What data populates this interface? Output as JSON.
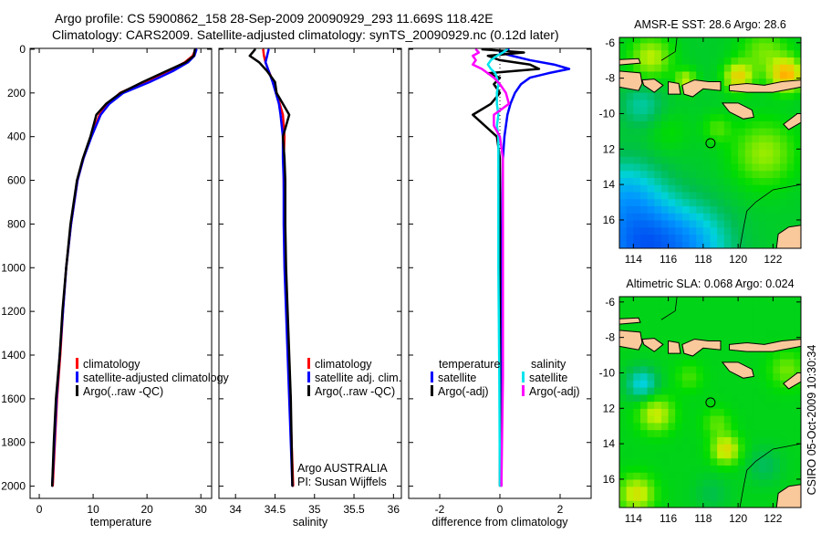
{
  "title": {
    "line1": "Argo profile: CS 5900862_158 28-Sep-2009 20090929_293 11.669S 118.42E",
    "line2": "Climatology: CARS2009. Satellite-adjusted climatology: synTS_20090929.nc (0.12d later)"
  },
  "credit": {
    "provider": "Argo AUSTRALIA",
    "pi": "PI: Susan Wijffels"
  },
  "timestamp": "CSIRO 05-Oct-2009 10:30:34",
  "colors": {
    "climatology": "#ff0000",
    "satellite": "#0000ff",
    "argo": "#000000",
    "sal_satellite": "#00e5ee",
    "sal_argo": "#ff00ff",
    "land": "#f9c99b"
  },
  "chart_data": [
    {
      "id": "temperature",
      "type": "line",
      "xlabel": "temperature",
      "ylabel": "",
      "xlim": [
        -1.7,
        32
      ],
      "ylim": [
        2056,
        -4
      ],
      "xticks": [
        0,
        10,
        20,
        30
      ],
      "xtick_labels": [
        "0",
        "10",
        "20",
        "30"
      ],
      "yticks": [
        0,
        200,
        400,
        600,
        800,
        1000,
        1200,
        1400,
        1600,
        1800,
        2000
      ],
      "ytick_labels": [
        "0",
        "200",
        "400",
        "600",
        "800",
        "1000",
        "1200",
        "1400",
        "1600",
        "1800",
        "2000"
      ],
      "depth": [
        0,
        30,
        60,
        100,
        150,
        200,
        250,
        300,
        400,
        500,
        600,
        800,
        1000,
        1200,
        1400,
        1600,
        1800,
        2000
      ],
      "series": [
        {
          "name": "climatology",
          "color": "#ff0000",
          "values": [
            29.0,
            28.5,
            27.0,
            24.0,
            19.5,
            15.0,
            12.8,
            11.2,
            9.6,
            8.2,
            7.1,
            5.9,
            5.0,
            4.4,
            3.9,
            3.3,
            2.9,
            2.5
          ]
        },
        {
          "name": "satellite-adjusted climatology",
          "color": "#0000ff",
          "values": [
            29.2,
            28.8,
            27.6,
            24.8,
            20.5,
            15.6,
            13.0,
            11.4,
            9.7,
            8.2,
            7.1,
            5.9,
            5.0,
            4.4,
            3.8,
            3.2,
            2.8,
            2.4
          ]
        },
        {
          "name": "Argo(..raw -QC)",
          "color": "#000000",
          "values": [
            28.9,
            28.7,
            27.2,
            23.6,
            19.2,
            15.1,
            12.4,
            10.6,
            9.5,
            8.1,
            7.0,
            5.8,
            5.0,
            4.3,
            3.8,
            3.1,
            2.7,
            2.4
          ]
        }
      ],
      "legend": {
        "placement": "center-right",
        "entries": [
          "climatology",
          "satellite-adjusted climatology",
          "Argo(..raw -QC)"
        ]
      }
    },
    {
      "id": "salinity",
      "type": "line",
      "xlabel": "salinity",
      "xlim": [
        33.79,
        36.1
      ],
      "ylim": [
        2056,
        -4
      ],
      "xticks": [
        34,
        34.5,
        35,
        35.5,
        36
      ],
      "xtick_labels": [
        "34",
        "34.5",
        "35",
        "35.5",
        "36"
      ],
      "yticks": [
        0,
        200,
        400,
        600,
        800,
        1000,
        1200,
        1400,
        1600,
        1800,
        2000
      ],
      "depth": [
        0,
        30,
        60,
        100,
        150,
        200,
        250,
        300,
        400,
        500,
        600,
        800,
        1000,
        1200,
        1400,
        1600,
        1800,
        2000
      ],
      "series": [
        {
          "name": "climatology",
          "color": "#ff0000",
          "values": [
            34.35,
            34.36,
            34.38,
            34.42,
            34.48,
            34.52,
            34.56,
            34.6,
            34.62,
            34.61,
            34.61,
            34.62,
            34.63,
            34.65,
            34.67,
            34.69,
            34.71,
            34.73
          ]
        },
        {
          "name": "satellite adj. clim.",
          "color": "#0000ff",
          "values": [
            34.42,
            34.4,
            34.38,
            34.42,
            34.47,
            34.51,
            34.55,
            34.57,
            34.6,
            34.6,
            34.61,
            34.61,
            34.62,
            34.64,
            34.66,
            34.68,
            34.7,
            34.72
          ]
        },
        {
          "name": "Argo(..raw -QC)",
          "color": "#000000",
          "values": [
            34.25,
            34.18,
            34.3,
            34.4,
            34.5,
            34.52,
            34.6,
            34.68,
            34.6,
            34.62,
            34.63,
            34.63,
            34.64,
            34.66,
            34.68,
            34.7,
            34.71,
            34.72
          ]
        }
      ],
      "legend": {
        "placement": "center-right",
        "entries": [
          "climatology",
          "satellite adj. clim.",
          "Argo(..raw -QC)"
        ]
      }
    },
    {
      "id": "difference",
      "type": "line",
      "xlabel": "difference from climatology",
      "xlim": [
        -3.03,
        3.03
      ],
      "ylim": [
        2056,
        -4
      ],
      "xticks": [
        -2,
        0,
        2
      ],
      "xtick_labels": [
        "-2",
        "0",
        "2"
      ],
      "yticks": [
        0,
        200,
        400,
        600,
        800,
        1000,
        1200,
        1400,
        1600,
        1800,
        2000
      ],
      "depth": [
        0,
        15,
        30,
        50,
        70,
        90,
        110,
        130,
        160,
        200,
        250,
        300,
        350,
        400,
        500,
        700,
        1000,
        1500,
        2000
      ],
      "series": [
        {
          "name": "temperature satellite",
          "color": "#0000ff",
          "values": [
            0.3,
            0.0,
            0.4,
            1.0,
            1.8,
            2.3,
            1.6,
            1.0,
            0.7,
            0.5,
            0.35,
            0.25,
            0.2,
            0.15,
            0.1,
            0.08,
            0.05,
            0.05,
            0.05
          ]
        },
        {
          "name": "temperature Argo(-adj)",
          "color": "#000000",
          "values": [
            -0.6,
            0.8,
            -0.4,
            0.0,
            1.0,
            1.3,
            -0.4,
            0.0,
            -0.2,
            0.0,
            -0.3,
            -0.9,
            -0.5,
            -0.1,
            0.0,
            0.0,
            0.0,
            0.0,
            0.0
          ]
        },
        {
          "name": "salinity satellite",
          "color": "#00e5ee",
          "values": [
            0.25,
            0.1,
            -0.1,
            -0.3,
            -0.4,
            -0.3,
            -0.15,
            -0.1,
            -0.05,
            -0.1,
            -0.1,
            -0.05,
            -0.1,
            -0.05,
            -0.05,
            -0.05,
            -0.05,
            -0.02,
            0.0
          ]
        },
        {
          "name": "salinity Argo(-adj)",
          "color": "#ff00ff",
          "values": [
            -0.8,
            -0.7,
            -0.9,
            -0.8,
            -0.9,
            -0.6,
            -0.4,
            -0.2,
            0.0,
            0.2,
            0.3,
            -0.2,
            -0.2,
            0.0,
            0.1,
            0.1,
            0.1,
            0.1,
            0.05
          ]
        }
      ],
      "legend": {
        "placement": "center",
        "temperature_heading": "temperature",
        "salinity_heading": "salinity",
        "entries": [
          "satellite",
          "Argo(-adj)",
          "satellite",
          "Argo(-adj)"
        ]
      }
    },
    {
      "id": "sst-map",
      "type": "heatmap",
      "title": "AMSR-E SST: 28.6 Argo: 28.6",
      "xlim": [
        113.2,
        123.6
      ],
      "ylim": [
        -17.6,
        -5.7
      ],
      "xticks": [
        114,
        116,
        118,
        120,
        122
      ],
      "xtick_labels": [
        "114",
        "116",
        "118",
        "120",
        "122"
      ],
      "yticks": [
        -6,
        -8,
        -10,
        -12,
        -14,
        -16
      ],
      "ytick_labels": [
        "-6",
        "-8",
        "-10",
        "12",
        "14",
        "16"
      ],
      "profile_location": {
        "lon": 118.42,
        "lat": -11.669
      },
      "field": {
        "base": 0.5,
        "blobs": [
          {
            "lon": 114.5,
            "lat": -17.5,
            "amp": -0.42,
            "r": 2.6
          },
          {
            "lon": 117.5,
            "lat": -17.5,
            "amp": -0.2,
            "r": 2.2
          },
          {
            "lon": 113.5,
            "lat": -14.5,
            "amp": -0.18,
            "r": 2.0
          },
          {
            "lon": 114.5,
            "lat": -9.5,
            "amp": -0.12,
            "r": 1.2
          },
          {
            "lon": 121.5,
            "lat": -12.2,
            "amp": 0.17,
            "r": 1.8
          },
          {
            "lon": 118.8,
            "lat": -10.8,
            "amp": 0.1,
            "r": 0.8
          },
          {
            "lon": 116,
            "lat": -11,
            "amp": 0.05,
            "r": 1.2
          },
          {
            "lon": 115,
            "lat": -6.8,
            "amp": 0.2,
            "r": 1.2
          },
          {
            "lon": 121.5,
            "lat": -6.5,
            "amp": 0.14,
            "r": 1.4
          },
          {
            "lon": 122.8,
            "lat": -7.8,
            "amp": 0.35,
            "r": 0.9
          },
          {
            "lon": 120,
            "lat": -7.9,
            "amp": 0.28,
            "r": 0.8
          },
          {
            "lon": 117,
            "lat": -8.1,
            "amp": 0.2,
            "r": 0.6
          }
        ]
      }
    },
    {
      "id": "sla-map",
      "type": "heatmap",
      "title": "Altimetric SLA: 0.068 Argo: 0.024",
      "xlim": [
        113.2,
        123.6
      ],
      "ylim": [
        -17.6,
        -5.7
      ],
      "xticks": [
        114,
        116,
        118,
        120,
        122
      ],
      "xtick_labels": [
        "114",
        "116",
        "118",
        "120",
        "122"
      ],
      "yticks": [
        -6,
        -8,
        -10,
        -12,
        -14,
        -16
      ],
      "ytick_labels": [
        "-6",
        "-8",
        "-10",
        "12",
        "14",
        "16"
      ],
      "profile_location": {
        "lon": 118.42,
        "lat": -11.669
      },
      "field": {
        "base": 0.52,
        "blobs": [
          {
            "lon": 114.5,
            "lat": -10.6,
            "amp": -0.2,
            "r": 0.9
          },
          {
            "lon": 115.3,
            "lat": -12.3,
            "amp": 0.2,
            "r": 1.0
          },
          {
            "lon": 119.3,
            "lat": -14.3,
            "amp": 0.24,
            "r": 0.8
          },
          {
            "lon": 118.8,
            "lat": -12.8,
            "amp": 0.1,
            "r": 0.8
          },
          {
            "lon": 114.2,
            "lat": -16.8,
            "amp": 0.22,
            "r": 1.0
          },
          {
            "lon": 117.2,
            "lat": -10.2,
            "amp": 0.08,
            "r": 0.8
          },
          {
            "lon": 122.8,
            "lat": -9.8,
            "amp": 0.12,
            "r": 1.0
          },
          {
            "lon": 121.5,
            "lat": -15.2,
            "amp": -0.08,
            "r": 1.0
          },
          {
            "lon": 118.5,
            "lat": -16.8,
            "amp": -0.06,
            "r": 1.0
          }
        ]
      }
    }
  ],
  "land": [
    {
      "name": "Madura",
      "points": [
        [
          113.2,
          -6.95
        ],
        [
          114.3,
          -6.9
        ],
        [
          114.4,
          -7.15
        ],
        [
          113.2,
          -7.25
        ]
      ]
    },
    {
      "name": "East Java",
      "points": [
        [
          113.2,
          -7.6
        ],
        [
          114.4,
          -7.7
        ],
        [
          114.5,
          -8.3
        ],
        [
          114.3,
          -8.7
        ],
        [
          113.2,
          -8.5
        ]
      ]
    },
    {
      "name": "Bali",
      "points": [
        [
          114.5,
          -8.1
        ],
        [
          115.2,
          -8.05
        ],
        [
          115.7,
          -8.4
        ],
        [
          115.2,
          -8.8
        ],
        [
          114.6,
          -8.4
        ]
      ]
    },
    {
      "name": "Lombok",
      "points": [
        [
          116.0,
          -8.2
        ],
        [
          116.6,
          -8.3
        ],
        [
          116.7,
          -8.9
        ],
        [
          116.0,
          -8.9
        ]
      ]
    },
    {
      "name": "Sumbawa",
      "points": [
        [
          116.8,
          -8.4
        ],
        [
          117.5,
          -8.1
        ],
        [
          118.3,
          -8.2
        ],
        [
          119.0,
          -8.2
        ],
        [
          119.0,
          -8.7
        ],
        [
          118.0,
          -8.6
        ],
        [
          117.4,
          -9.05
        ],
        [
          116.9,
          -8.9
        ]
      ]
    },
    {
      "name": "Flores",
      "points": [
        [
          119.5,
          -8.4
        ],
        [
          120.5,
          -8.3
        ],
        [
          121.5,
          -8.4
        ],
        [
          122.5,
          -8.2
        ],
        [
          123.6,
          -8.1
        ],
        [
          123.6,
          -8.5
        ],
        [
          122.0,
          -8.8
        ],
        [
          120.5,
          -8.8
        ],
        [
          119.5,
          -8.7
        ]
      ]
    },
    {
      "name": "Sumba",
      "points": [
        [
          119.1,
          -9.4
        ],
        [
          120.0,
          -9.4
        ],
        [
          120.8,
          -9.8
        ],
        [
          120.9,
          -10.2
        ],
        [
          120.3,
          -10.3
        ],
        [
          119.5,
          -9.9
        ]
      ]
    },
    {
      "name": "Timor",
      "points": [
        [
          122.6,
          -10.6
        ],
        [
          123.4,
          -10.0
        ],
        [
          123.6,
          -10.0
        ],
        [
          123.6,
          -10.5
        ],
        [
          122.9,
          -10.9
        ]
      ]
    },
    {
      "name": "Australia",
      "points": [
        [
          122.2,
          -17.6
        ],
        [
          122.3,
          -16.8
        ],
        [
          122.9,
          -16.4
        ],
        [
          123.6,
          -16.3
        ],
        [
          123.6,
          -17.6
        ]
      ]
    }
  ],
  "contours": [
    {
      "name": "shelf",
      "points": [
        [
          120.1,
          -17.6
        ],
        [
          120.3,
          -16.5
        ],
        [
          120.5,
          -15.5
        ],
        [
          121,
          -15
        ],
        [
          122,
          -14.3
        ],
        [
          123.6,
          -14
        ]
      ]
    },
    {
      "name": "north",
      "points": [
        [
          116.5,
          -5.7
        ],
        [
          116.4,
          -6.5
        ],
        [
          115.6,
          -7.0
        ]
      ]
    }
  ]
}
